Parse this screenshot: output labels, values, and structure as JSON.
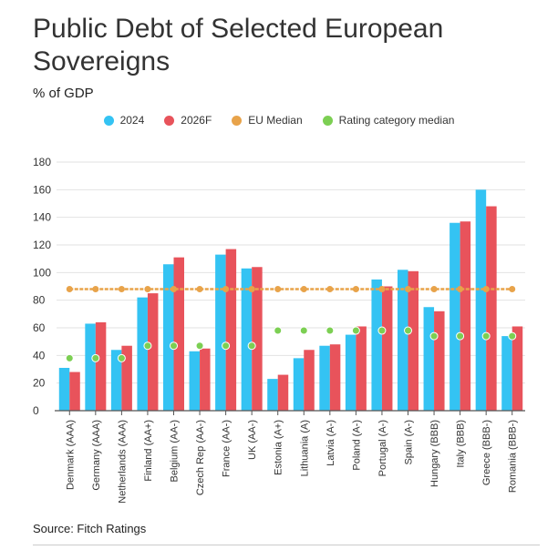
{
  "title": "Public Debt of Selected European Sovereigns",
  "subtitle": "% of GDP",
  "source": "Source: Fitch Ratings",
  "colors": {
    "s2024": "#34c3f3",
    "s2026": "#e8535b",
    "eu_median": "#e8a34a",
    "rating_median": "#7ccf53",
    "grid": "#e2e2e2",
    "axis": "#555555"
  },
  "chart_data": {
    "type": "bar",
    "categories": [
      "Denmark (AAA)",
      "Germany (AAA)",
      "Netherlands (AAA)",
      "Finland (AA+)",
      "Belgium (AA-)",
      "Czech Rep (AA-)",
      "France (AA-)",
      "UK (AA-)",
      "Estonia (A+)",
      "Lithuania (A)",
      "Latvia (A-)",
      "Poland (A-)",
      "Portugal (A-)",
      "Spain (A-)",
      "Hungary (BBB)",
      "Italy (BBB)",
      "Greece (BBB-)",
      "Romania (BBB-)"
    ],
    "series": [
      {
        "name": "2024",
        "type": "bar",
        "values": [
          31,
          63,
          44,
          82,
          106,
          43,
          113,
          103,
          23,
          38,
          47,
          55,
          95,
          102,
          75,
          136,
          160,
          54
        ]
      },
      {
        "name": "2026F",
        "type": "bar",
        "values": [
          28,
          64,
          47,
          85,
          111,
          45,
          117,
          104,
          26,
          44,
          48,
          61,
          90,
          101,
          72,
          137,
          148,
          61
        ]
      },
      {
        "name": "EU Median",
        "type": "line",
        "values": [
          88,
          88,
          88,
          88,
          88,
          88,
          88,
          88,
          88,
          88,
          88,
          88,
          88,
          88,
          88,
          88,
          88,
          88
        ]
      },
      {
        "name": "Rating category median",
        "type": "point",
        "values": [
          38,
          38,
          38,
          47,
          47,
          47,
          47,
          47,
          58,
          58,
          58,
          58,
          58,
          58,
          54,
          54,
          54,
          54
        ]
      }
    ],
    "ylim": [
      0,
      180
    ],
    "yticks": [
      0,
      20,
      40,
      60,
      80,
      100,
      120,
      140,
      160,
      180
    ],
    "grid": true,
    "legend_position": "top-center"
  }
}
